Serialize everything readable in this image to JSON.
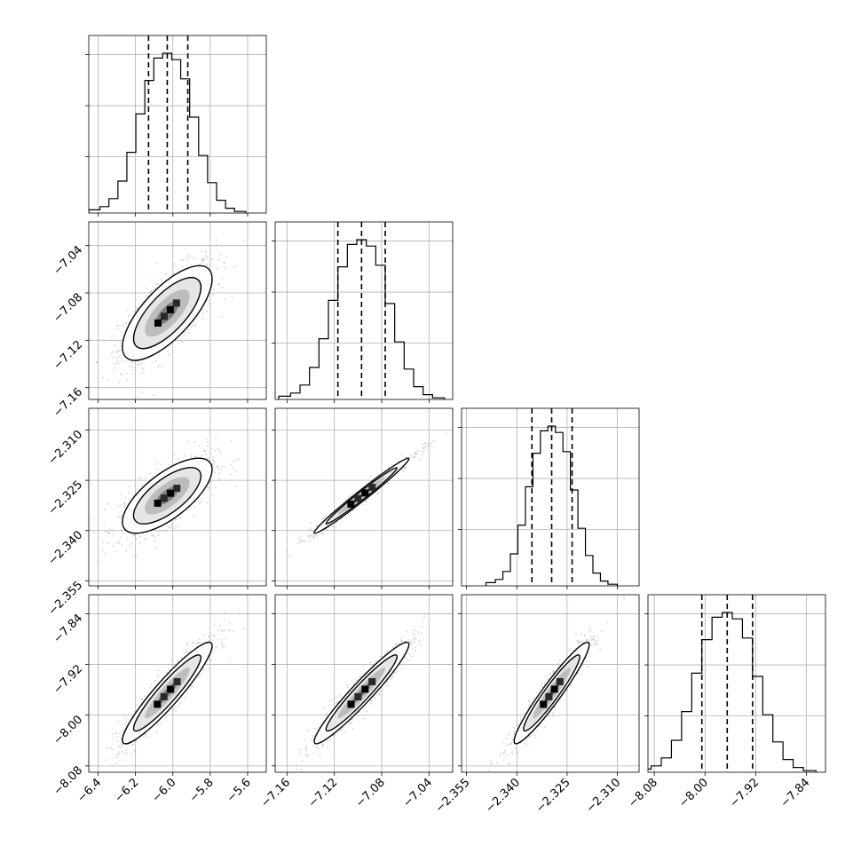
{
  "chart_data": {
    "type": "corner",
    "grid": true,
    "n_params": 4,
    "params": [
      {
        "mean": -6.03,
        "sd": 0.12,
        "lim": [
          -6.45,
          -5.5
        ],
        "ticks": [
          -6.4,
          -6.2,
          -6.0,
          -5.8,
          -5.6
        ],
        "tick_labels": [
          "−6.4",
          "−6.2",
          "−6.0",
          "−5.8",
          "−5.6"
        ],
        "quantiles": [
          -6.13,
          -6.03,
          -5.92
        ]
      },
      {
        "mean": -7.097,
        "sd": 0.02,
        "lim": [
          -7.17,
          -7.02
        ],
        "ticks": [
          -7.16,
          -7.12,
          -7.08,
          -7.04
        ],
        "tick_labels": [
          "−7.16",
          "−7.12",
          "−7.08",
          "−7.04"
        ],
        "quantiles": [
          -7.117,
          -7.097,
          -7.077
        ]
      },
      {
        "mean": -2.3296,
        "sd": 0.0056,
        "lim": [
          -2.3565,
          -2.3035
        ],
        "ticks": [
          -2.355,
          -2.34,
          -2.325,
          -2.31
        ],
        "tick_labels": [
          "−2.355",
          "−2.340",
          "−2.325",
          "−2.310"
        ],
        "quantiles": [
          -2.3355,
          -2.3296,
          -2.3235
        ]
      },
      {
        "mean": -7.965,
        "sd": 0.04,
        "lim": [
          -8.09,
          -7.81
        ],
        "ticks": [
          -8.08,
          -8.0,
          -7.92,
          -7.84
        ],
        "tick_labels": [
          "−8.08",
          "−8.00",
          "−7.92",
          "−7.84"
        ],
        "quantiles": [
          -8.005,
          -7.965,
          -7.925
        ]
      }
    ],
    "correlations": {
      "1-0": 0.72,
      "2-0": 0.7,
      "2-1": 0.985,
      "3-0": 0.93,
      "3-1": 0.955,
      "3-2": 0.95
    },
    "histogram": {
      "bin_edges_sd": [
        -3.5,
        -3.0,
        -2.6,
        -2.2,
        -1.8,
        -1.4,
        -1.0,
        -0.6,
        -0.2,
        0.2,
        0.6,
        1.0,
        1.4,
        1.8,
        2.2,
        2.6,
        3.0,
        3.5
      ],
      "heights": [
        0.02,
        0.04,
        0.09,
        0.2,
        0.38,
        0.62,
        0.83,
        0.97,
        1.0,
        0.96,
        0.84,
        0.6,
        0.36,
        0.19,
        0.08,
        0.03,
        0.01
      ]
    },
    "density_levels": [
      0.5,
      1.0,
      1.5,
      2.0
    ],
    "colors": {
      "points": "#9e9e9e",
      "fill_levels": [
        "#ffffff",
        "#e6e6e6",
        "#bdbdbd",
        "#7d7d7d",
        "#3a3a3a",
        "#000000"
      ],
      "lines": "#000000"
    }
  }
}
